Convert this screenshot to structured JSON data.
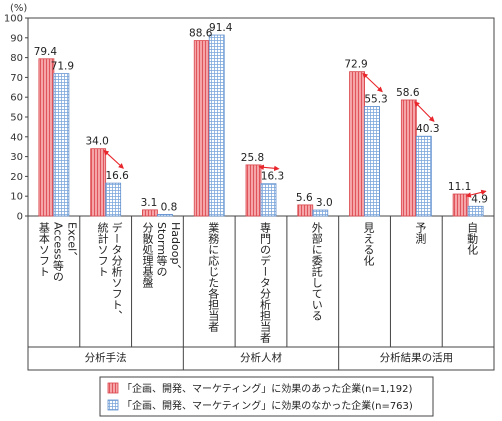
{
  "chart_data": {
    "type": "bar",
    "unit": "(%)",
    "ylim": [
      0,
      100
    ],
    "yticks": [
      0,
      10,
      20,
      30,
      40,
      50,
      60,
      70,
      80,
      90,
      100
    ],
    "categories": [
      "Excel、Access等の基本ソフト",
      "データ分析ソフト、統計ソフト",
      "Hadoop、Storm等の分散処理基盤",
      "業務に応じた各担当者",
      "専門のデータ分析担当者",
      "外部に委託している",
      "見える化",
      "予測",
      "自動化"
    ],
    "category_lines": [
      [
        "Excel、",
        "Access等の",
        "基本ソフト"
      ],
      [
        "データ分析ソフト、",
        "統計ソフト"
      ],
      [
        "Hadoop、",
        "Storm等の",
        "分散処理基盤"
      ],
      [
        "業務に応じた各担当者"
      ],
      [
        "専門のデータ分析担当者"
      ],
      [
        "外部に委託している"
      ],
      [
        "見える化"
      ],
      [
        "予測"
      ],
      [
        "自動化"
      ]
    ],
    "groups": [
      {
        "label": "分析手法",
        "categories": [
          0,
          1,
          2
        ]
      },
      {
        "label": "分析人材",
        "categories": [
          3,
          4,
          5
        ]
      },
      {
        "label": "分析結果の活用",
        "categories": [
          6,
          7,
          8
        ]
      }
    ],
    "series": [
      {
        "name": "「企画、開発、マーケティング」に効果のあった企業(n=1,192)",
        "values": [
          79.4,
          34.0,
          3.1,
          88.6,
          25.8,
          5.6,
          72.9,
          58.6,
          11.1
        ],
        "labels": [
          "79.4",
          "34.0",
          "3.1",
          "88.6",
          "25.8",
          "5.6",
          "72.9",
          "58.6",
          "11.1"
        ],
        "color": "#f28c8f",
        "pattern": "vertical-stripes"
      },
      {
        "name": "「企画、開発、マーケティング」に効果のなかった企業(n=763)",
        "values": [
          71.9,
          16.6,
          0.8,
          91.4,
          16.3,
          3.0,
          55.3,
          40.3,
          4.9
        ],
        "labels": [
          "71.9",
          "16.6",
          "0.8",
          "91.4",
          "16.3",
          "3.0",
          "55.3",
          "40.3",
          "4.9"
        ],
        "color": "#a8c4e8",
        "pattern": "grid"
      }
    ],
    "difference_arrows": [
      1,
      4,
      6,
      7,
      8
    ],
    "arrow_color": "#e8262b",
    "grid": false,
    "legend_position": "bottom-center"
  }
}
